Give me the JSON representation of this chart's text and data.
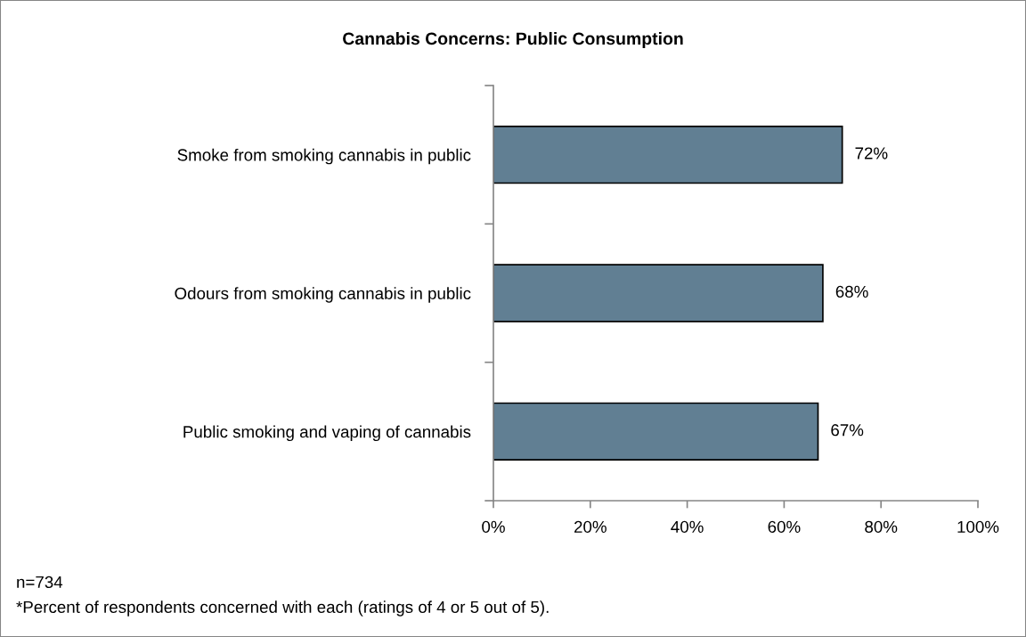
{
  "chart_data": {
    "type": "bar",
    "orientation": "horizontal",
    "title": "Cannabis Concerns: Public Consumption",
    "categories": [
      "Smoke from smoking cannabis in public",
      "Odours from smoking cannabis in public",
      "Public smoking and vaping of cannabis"
    ],
    "values": [
      72,
      68,
      67
    ],
    "color": "#617f93",
    "value_labels": [
      "72%",
      "68%",
      "67%"
    ],
    "xlim": [
      0,
      100
    ],
    "xticks": [
      {
        "value": 0,
        "label": "0%"
      },
      {
        "value": 20,
        "label": "20%"
      },
      {
        "value": 40,
        "label": "40%"
      },
      {
        "value": 60,
        "label": "60%"
      },
      {
        "value": 80,
        "label": "80%"
      },
      {
        "value": 100,
        "label": "100%"
      }
    ],
    "annotations": [
      "n=734",
      "*Percent of respondents concerned with each (ratings of 4 or 5 out of 5)."
    ]
  }
}
